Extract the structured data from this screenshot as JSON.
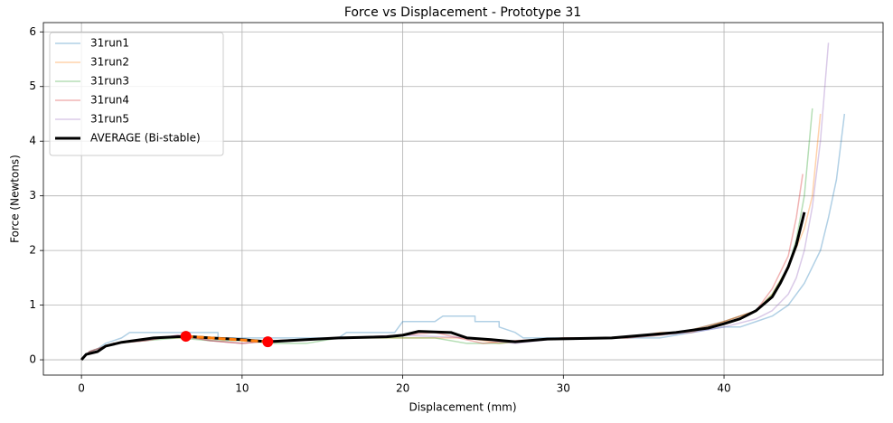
{
  "chart_data": {
    "type": "line",
    "title": "Force vs Displacement - Prototype 31",
    "x_label": "Displacement (mm)",
    "y_label": "Force (Newtons)",
    "xlim": [
      -2.37,
      49.9
    ],
    "xticks": [
      0,
      10,
      20,
      30,
      40
    ],
    "ylim": [
      -0.28,
      6.17
    ],
    "yticks": [
      0,
      1,
      2,
      3,
      4,
      5,
      6
    ],
    "grid": true,
    "legend": "upper left",
    "series": [
      {
        "name": "31run1",
        "color": "#1f77b4",
        "width": 1.5,
        "alpha": 0.35,
        "x": [
          0,
          0.5,
          1,
          1.5,
          2.5,
          3,
          8.5,
          8.5,
          16,
          16.5,
          19.5,
          20,
          22,
          22.5,
          24.5,
          24.5,
          26,
          26,
          27,
          27.5,
          34,
          36,
          38,
          40,
          41,
          42,
          43,
          44,
          44.5,
          45,
          45.5,
          46,
          46.5,
          47,
          47.5
        ],
        "values": [
          0,
          0.15,
          0.2,
          0.3,
          0.4,
          0.5,
          0.5,
          0.4,
          0.4,
          0.5,
          0.5,
          0.7,
          0.7,
          0.8,
          0.8,
          0.7,
          0.7,
          0.6,
          0.5,
          0.4,
          0.4,
          0.4,
          0.5,
          0.6,
          0.6,
          0.7,
          0.8,
          1.0,
          1.2,
          1.4,
          1.7,
          2.0,
          2.6,
          3.3,
          4.5
        ]
      },
      {
        "name": "31run2",
        "color": "#ff7f0e",
        "width": 1.5,
        "alpha": 0.35,
        "x": [
          0,
          0.5,
          1,
          2,
          4,
          5,
          7,
          8,
          10,
          12,
          16,
          20,
          24,
          26,
          28,
          30,
          34,
          36,
          38,
          40,
          42,
          43,
          44,
          45,
          45.5,
          46
        ],
        "values": [
          0,
          0.15,
          0.2,
          0.3,
          0.35,
          0.4,
          0.4,
          0.35,
          0.3,
          0.35,
          0.4,
          0.4,
          0.4,
          0.3,
          0.35,
          0.4,
          0.4,
          0.5,
          0.5,
          0.7,
          0.9,
          1.2,
          1.7,
          2.4,
          3.0,
          4.5
        ]
      },
      {
        "name": "31run3",
        "color": "#2ca02c",
        "width": 1.5,
        "alpha": 0.35,
        "x": [
          0,
          0.5,
          1,
          2,
          4,
          6,
          8,
          10,
          12,
          14,
          16,
          20,
          22,
          24,
          26,
          28,
          30,
          34,
          36,
          38,
          40,
          42,
          43,
          44,
          44.5,
          45,
          45.5
        ],
        "values": [
          0,
          0.15,
          0.2,
          0.3,
          0.35,
          0.4,
          0.35,
          0.35,
          0.3,
          0.3,
          0.4,
          0.4,
          0.4,
          0.3,
          0.3,
          0.35,
          0.4,
          0.4,
          0.45,
          0.55,
          0.7,
          0.9,
          1.2,
          1.7,
          2.2,
          3.0,
          4.6
        ]
      },
      {
        "name": "31run4",
        "color": "#d62728",
        "width": 1.5,
        "alpha": 0.35,
        "x": [
          0,
          0.5,
          1,
          2,
          4,
          6,
          8,
          10,
          12,
          16,
          20,
          22,
          25,
          27,
          30,
          34,
          36,
          38,
          40,
          42,
          43,
          44,
          44.5,
          44.9
        ],
        "values": [
          0,
          0.15,
          0.2,
          0.3,
          0.35,
          0.45,
          0.35,
          0.3,
          0.35,
          0.4,
          0.45,
          0.5,
          0.3,
          0.35,
          0.4,
          0.4,
          0.45,
          0.55,
          0.7,
          0.9,
          1.3,
          1.9,
          2.6,
          3.4
        ]
      },
      {
        "name": "31run5",
        "color": "#9467bd",
        "width": 1.5,
        "alpha": 0.35,
        "x": [
          0,
          0.5,
          1,
          2,
          4,
          6,
          8,
          10,
          12,
          16,
          20,
          24,
          27,
          30,
          34,
          38,
          40,
          42,
          43,
          44,
          44.5,
          45,
          45.5,
          46,
          46.5
        ],
        "values": [
          0,
          0.15,
          0.2,
          0.3,
          0.35,
          0.45,
          0.35,
          0.3,
          0.35,
          0.4,
          0.45,
          0.4,
          0.3,
          0.4,
          0.4,
          0.5,
          0.6,
          0.75,
          0.9,
          1.2,
          1.5,
          2.0,
          2.8,
          4.0,
          5.8
        ]
      },
      {
        "name": "AVERAGE (Bi-stable)",
        "color": "#000000",
        "width": 3,
        "alpha": 1,
        "x": [
          0,
          0.3,
          1,
          1.5,
          2.5,
          4.5,
          6.5,
          8,
          10,
          11.6,
          14,
          16,
          19,
          20,
          21,
          23,
          24,
          25.5,
          27,
          29,
          33,
          35,
          37,
          39,
          40,
          41,
          42,
          43,
          43.5,
          44,
          44.5,
          45
        ],
        "values": [
          0,
          0.1,
          0.15,
          0.25,
          0.32,
          0.4,
          0.43,
          0.4,
          0.37,
          0.33,
          0.37,
          0.4,
          0.42,
          0.45,
          0.52,
          0.5,
          0.4,
          0.37,
          0.33,
          0.38,
          0.4,
          0.45,
          0.5,
          0.58,
          0.66,
          0.75,
          0.9,
          1.15,
          1.4,
          1.7,
          2.1,
          2.7
        ]
      }
    ],
    "markers": {
      "color": "#ff0000",
      "line_color": "#ff7f0e",
      "x": [
        6.5,
        11.6
      ],
      "values": [
        0.43,
        0.33
      ]
    }
  }
}
